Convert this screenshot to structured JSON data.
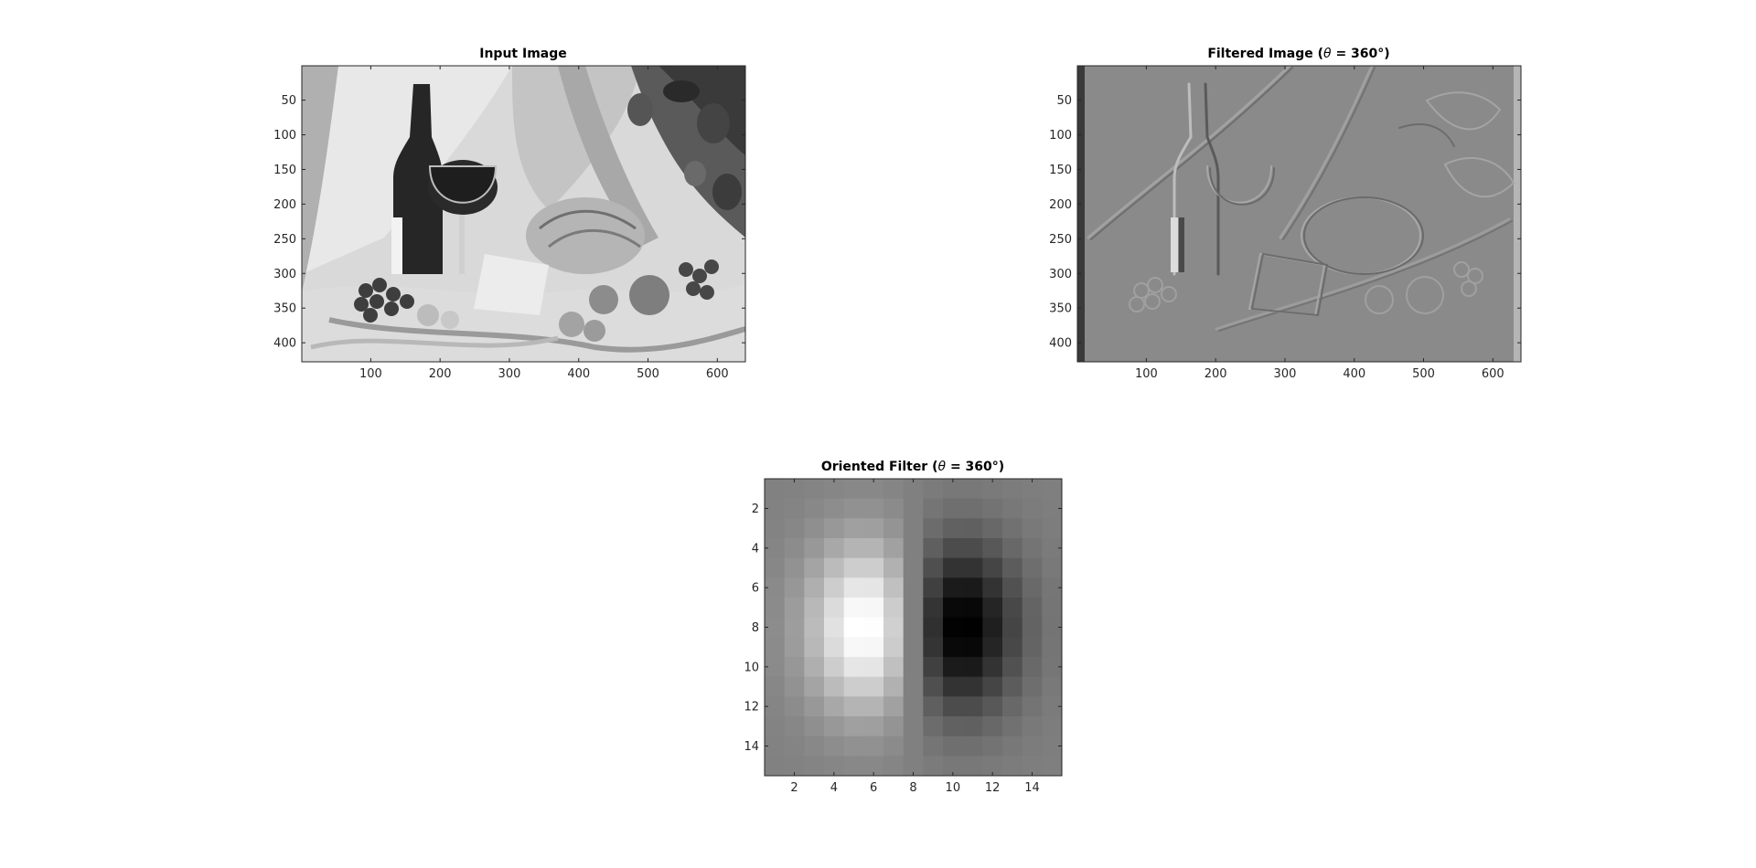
{
  "figure": {
    "panels": [
      {
        "id": "input",
        "title": "Input Image"
      },
      {
        "id": "filtered",
        "title_prefix": "Filtered Image (",
        "theta_symbol": "θ",
        "title_suffix": " = 360°)"
      },
      {
        "id": "filter",
        "title_prefix": "Oriented Filter (",
        "theta_symbol": "θ",
        "title_suffix": " = 360°)"
      }
    ]
  },
  "chart_data": [
    {
      "type": "heatmap",
      "title": "Input Image",
      "colormap": "gray",
      "xlim": [
        0.5,
        640.5
      ],
      "ylim": [
        0.5,
        427.5
      ],
      "y_reversed": true,
      "xticks": [
        100,
        200,
        300,
        400,
        500,
        600
      ],
      "yticks": [
        50,
        100,
        150,
        200,
        250,
        300,
        350,
        400
      ],
      "content": "grayscale photograph: wine bottle, wine glass, bread, cheese, grapes on draped cloth"
    },
    {
      "type": "heatmap",
      "title": "Filtered Image (θ = 360°)",
      "colormap": "gray",
      "xlim": [
        0.5,
        640.5
      ],
      "ylim": [
        0.5,
        427.5
      ],
      "y_reversed": true,
      "xticks": [
        100,
        200,
        300,
        400,
        500,
        600
      ],
      "yticks": [
        50,
        100,
        150,
        200,
        250,
        300,
        350,
        400
      ],
      "content": "embossed edge-response image of the input, mostly mid-gray"
    },
    {
      "type": "heatmap",
      "title": "Oriented Filter (θ = 360°)",
      "colormap": "gray",
      "size": [
        15,
        15
      ],
      "xlim": [
        0.5,
        15.5
      ],
      "ylim": [
        0.5,
        15.5
      ],
      "y_reversed": true,
      "xticks": [
        2,
        4,
        6,
        8,
        10,
        12,
        14
      ],
      "yticks": [
        2,
        4,
        6,
        8,
        10,
        12,
        14
      ],
      "model": "gaussian first derivative along x",
      "center": [
        8,
        8
      ],
      "sigma_x": 2.5,
      "sigma_y": 3,
      "peak_value": 1,
      "peak_x": 5.5,
      "trough_x": 10.5
    }
  ]
}
